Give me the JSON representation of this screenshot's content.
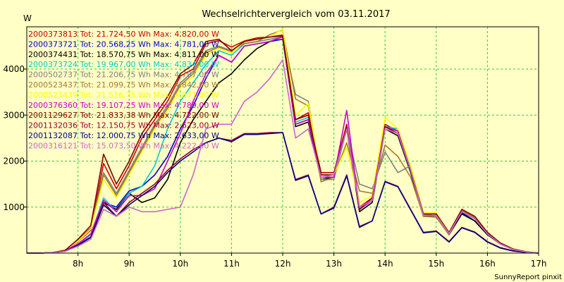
{
  "chart_data": {
    "type": "line",
    "title": "Wechselrichtervergleich vom 03.11.2017",
    "ylabel": "W",
    "credit": "SunnyReport pinxit",
    "background_color": "#ffffc6",
    "grid": true,
    "grid_color": "#33cc33",
    "legend_position": "top-left, inside",
    "xlim": [
      7.0,
      17.0
    ],
    "ylim": [
      0,
      4920
    ],
    "x_ticks": [
      8,
      9,
      10,
      11,
      12,
      13,
      14,
      15,
      16,
      17
    ],
    "x_tick_labels": [
      "8h",
      "9h",
      "10h",
      "11h",
      "12h",
      "13h",
      "14h",
      "15h",
      "16h",
      "17h"
    ],
    "y_ticks": [
      1000,
      2000,
      3000,
      4000
    ],
    "y_tick_labels": [
      "1000",
      "2000",
      "3000",
      "4000"
    ],
    "x": [
      7.0,
      7.25,
      7.5,
      7.75,
      8.0,
      8.25,
      8.5,
      8.75,
      9.0,
      9.25,
      9.5,
      9.75,
      10.0,
      10.25,
      10.5,
      10.75,
      11.0,
      11.25,
      11.5,
      11.75,
      12.0,
      12.25,
      12.5,
      12.75,
      13.0,
      13.25,
      13.5,
      13.75,
      14.0,
      14.25,
      14.5,
      14.75,
      15.0,
      15.25,
      15.5,
      15.75,
      16.0,
      16.25,
      16.5,
      16.75,
      17.0
    ],
    "series": [
      {
        "name": "2000373813",
        "legend": "2000373813 Tot: 21.724,50 Wh Max: 4.820,00 W",
        "color": "#cc0000",
        "values": [
          0,
          0,
          10,
          60,
          250,
          500,
          1950,
          1400,
          1900,
          2500,
          2900,
          3300,
          3850,
          4000,
          4550,
          4620,
          4480,
          4610,
          4680,
          4700,
          4740,
          2900,
          3050,
          1750,
          1750,
          2800,
          1000,
          1200,
          2800,
          2650,
          1850,
          850,
          850,
          450,
          920,
          750,
          450,
          220,
          90,
          30,
          0
        ]
      },
      {
        "name": "2000373721",
        "legend": "2000373721 Tot: 20.568,25 Wh Max: 4.781,00 W",
        "color": "#0000cc",
        "values": [
          0,
          0,
          10,
          50,
          200,
          400,
          1100,
          1000,
          1350,
          1450,
          1700,
          2100,
          2700,
          3200,
          3800,
          4300,
          4150,
          4500,
          4550,
          4600,
          4650,
          2800,
          2900,
          1650,
          1650,
          2750,
          950,
          1150,
          2750,
          2600,
          1800,
          800,
          800,
          400,
          880,
          700,
          400,
          200,
          80,
          25,
          0
        ]
      },
      {
        "name": "2000374431",
        "legend": "2000374431 Tot: 18.570,75 Wh Max: 4.811,00 W",
        "color": "#000000",
        "values": [
          0,
          0,
          10,
          50,
          180,
          350,
          1100,
          950,
          1300,
          1100,
          1200,
          1600,
          2400,
          2900,
          3300,
          3700,
          3900,
          4200,
          4450,
          4600,
          4700,
          2750,
          2850,
          1600,
          1650,
          2700,
          900,
          1100,
          2700,
          2550,
          1750,
          800,
          800,
          400,
          850,
          700,
          400,
          200,
          80,
          25,
          0
        ]
      },
      {
        "name": "2000373724",
        "legend": "2000373724 Tot: 19.967,00 Wh Max: 4.834,00 W",
        "color": "#00cccc",
        "values": [
          0,
          0,
          10,
          50,
          200,
          400,
          1200,
          900,
          1300,
          1450,
          1900,
          2700,
          3300,
          3700,
          4100,
          4400,
          4300,
          4550,
          4600,
          4650,
          4700,
          2850,
          2950,
          1700,
          1700,
          2750,
          950,
          1150,
          2750,
          2700,
          1850,
          850,
          850,
          450,
          900,
          750,
          420,
          200,
          85,
          25,
          0
        ]
      },
      {
        "name": "2000502737",
        "legend": "2000502737 Tot: 21.206,75 Wh Max: 4.787,00 W",
        "color": "#808080",
        "values": [
          0,
          0,
          10,
          60,
          280,
          550,
          1750,
          1300,
          1800,
          2300,
          2800,
          3200,
          3700,
          3950,
          4400,
          4500,
          4400,
          4550,
          4600,
          4650,
          4700,
          3450,
          3300,
          1600,
          1600,
          2700,
          1500,
          1400,
          2200,
          1750,
          1900,
          850,
          800,
          400,
          950,
          800,
          450,
          220,
          90,
          30,
          0
        ]
      },
      {
        "name": "2000523437",
        "legend": "2000523437 Tot: 21.099,75 Wh Max: 4.842,00 W",
        "color": "#a57a35",
        "values": [
          0,
          0,
          10,
          60,
          270,
          530,
          1700,
          1250,
          1750,
          2250,
          2750,
          3150,
          3650,
          3900,
          4350,
          4480,
          4380,
          4560,
          4600,
          4750,
          4850,
          3350,
          3200,
          1550,
          1650,
          2400,
          1350,
          1300,
          2350,
          2100,
          1650,
          800,
          780,
          400,
          920,
          780,
          430,
          210,
          85,
          28,
          0
        ]
      },
      {
        "name": "2000523439",
        "legend": "2000523439 Tot: 21.516,75 Wh Max: 4.871,00 W",
        "color": "#ffff00",
        "values": [
          0,
          0,
          10,
          60,
          260,
          520,
          1600,
          1200,
          1700,
          2200,
          2700,
          3100,
          3600,
          3850,
          4300,
          4450,
          4350,
          4600,
          4650,
          4700,
          4870,
          3000,
          3250,
          1650,
          1700,
          2300,
          1100,
          1250,
          2950,
          2700,
          1900,
          880,
          880,
          450,
          950,
          800,
          450,
          220,
          90,
          30,
          0
        ]
      },
      {
        "name": "2000376360",
        "legend": "2000376360 Tot: 19.107,25 Wh Max: 4.789,00 W",
        "color": "#cc00cc",
        "values": [
          0,
          0,
          10,
          50,
          200,
          420,
          1150,
          900,
          1250,
          1250,
          1400,
          2000,
          2600,
          3300,
          3900,
          4300,
          4150,
          4500,
          4550,
          4600,
          4700,
          2800,
          2900,
          1650,
          1650,
          3100,
          950,
          1150,
          2750,
          2650,
          1800,
          850,
          850,
          430,
          900,
          750,
          420,
          200,
          85,
          25,
          0
        ]
      },
      {
        "name": "2001129627",
        "legend": "2001129627 Tot: 21.833,38 Wh Max: 4.722,00 W",
        "color": "#800000",
        "values": [
          0,
          0,
          10,
          60,
          300,
          600,
          2150,
          1500,
          2000,
          2600,
          3000,
          3400,
          3900,
          4100,
          4600,
          4650,
          4400,
          4600,
          4650,
          4700,
          4720,
          2900,
          3000,
          1700,
          1700,
          2750,
          950,
          1200,
          2750,
          2600,
          1800,
          850,
          850,
          450,
          950,
          800,
          450,
          220,
          90,
          30,
          0
        ]
      },
      {
        "name": "2001132036",
        "legend": "2001132036 Tot: 12.150,75 Wh Max: 2.623,00 W",
        "color": "#990033",
        "values": [
          0,
          0,
          10,
          40,
          180,
          350,
          1100,
          800,
          1100,
          1300,
          1500,
          1800,
          2050,
          2250,
          2400,
          2500,
          2450,
          2600,
          2600,
          2620,
          2620,
          1600,
          1700,
          850,
          1000,
          1700,
          580,
          700,
          1560,
          1450,
          950,
          450,
          480,
          250,
          560,
          460,
          250,
          120,
          50,
          15,
          0
        ]
      },
      {
        "name": "2001132087",
        "legend": "2001132087 Tot: 12.000,75 Wh Max: 2.633,00 W",
        "color": "#000080",
        "values": [
          0,
          0,
          10,
          40,
          170,
          340,
          1050,
          800,
          1050,
          1250,
          1450,
          1750,
          2000,
          2200,
          2400,
          2500,
          2420,
          2580,
          2580,
          2600,
          2620,
          1580,
          1680,
          850,
          980,
          1680,
          560,
          700,
          1550,
          1440,
          940,
          440,
          470,
          240,
          550,
          450,
          240,
          110,
          45,
          15,
          0
        ]
      },
      {
        "name": "2000316121",
        "legend": "2000316121 Tot: 15.073,50 Wh Max: 4.222,00 W",
        "color": "#cc66cc",
        "values": [
          0,
          0,
          10,
          40,
          150,
          300,
          950,
          800,
          1000,
          900,
          900,
          950,
          1000,
          1700,
          2700,
          2800,
          2800,
          3300,
          3500,
          3800,
          4200,
          2500,
          2700,
          1650,
          1700,
          2700,
          1000,
          1150,
          2700,
          2600,
          1800,
          820,
          820,
          430,
          900,
          750,
          420,
          200,
          80,
          25,
          0
        ]
      }
    ]
  }
}
